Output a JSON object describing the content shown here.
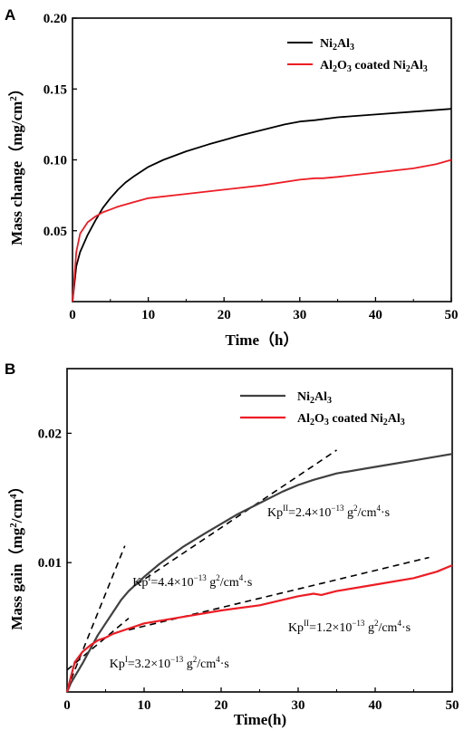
{
  "chart_data": [
    {
      "panel": "A",
      "type": "line",
      "xlabel": "Time（h）",
      "ylabel": "Mass change（mg/cm²）",
      "xlim": [
        0,
        50
      ],
      "ylim": [
        0,
        0.2
      ],
      "xticks": [
        "0",
        "10",
        "20",
        "30",
        "40",
        "50"
      ],
      "yticks": [
        "0.05",
        "0.10",
        "0.15",
        "0.20"
      ],
      "legend_position": "top-right",
      "series": [
        {
          "name": "Ni₂Al₃",
          "color": "#000000",
          "x": [
            0,
            0.5,
            1,
            2,
            3,
            4,
            5,
            6,
            7,
            8,
            10,
            12,
            15,
            18,
            20,
            22,
            25,
            28,
            30,
            32,
            35,
            40,
            45,
            50
          ],
          "y": [
            0,
            0.025,
            0.035,
            0.047,
            0.057,
            0.066,
            0.073,
            0.079,
            0.084,
            0.088,
            0.095,
            0.1,
            0.106,
            0.111,
            0.114,
            0.117,
            0.121,
            0.125,
            0.127,
            0.128,
            0.13,
            0.132,
            0.134,
            0.136
          ]
        },
        {
          "name": "Al₂O₃ coated Ni₂Al₃",
          "color": "#ee1c24",
          "x": [
            0,
            0.5,
            1,
            2,
            3,
            4,
            5,
            6,
            8,
            10,
            15,
            20,
            25,
            30,
            32,
            33,
            35,
            40,
            45,
            48,
            50
          ],
          "y": [
            0,
            0.035,
            0.048,
            0.056,
            0.06,
            0.063,
            0.065,
            0.067,
            0.07,
            0.073,
            0.076,
            0.079,
            0.082,
            0.086,
            0.087,
            0.087,
            0.088,
            0.091,
            0.094,
            0.097,
            0.1
          ]
        }
      ]
    },
    {
      "panel": "B",
      "type": "line",
      "xlabel": "Time(h)",
      "ylabel": "Mass gain（mg²/cm⁴）",
      "xlim": [
        0,
        50
      ],
      "ylim": [
        0,
        0.025
      ],
      "xticks": [
        "0",
        "10",
        "20",
        "30",
        "40",
        "50"
      ],
      "yticks": [
        "0.01",
        "0.02"
      ],
      "legend_position": "top-right",
      "series": [
        {
          "name": "Ni₂Al₃",
          "color": "#404040",
          "x": [
            0,
            0.5,
            1,
            2,
            3,
            4,
            5,
            6,
            7,
            8,
            10,
            12,
            15,
            18,
            20,
            22,
            25,
            28,
            30,
            32,
            35,
            40,
            45,
            50
          ],
          "y": [
            0,
            0.0007,
            0.0012,
            0.0022,
            0.0033,
            0.0044,
            0.0053,
            0.0062,
            0.0071,
            0.0078,
            0.0089,
            0.0099,
            0.0112,
            0.0123,
            0.013,
            0.0137,
            0.0146,
            0.0155,
            0.016,
            0.0164,
            0.0169,
            0.0174,
            0.0179,
            0.0184
          ]
        },
        {
          "name": "Al₂O₃ coated Ni₂Al₃",
          "color": "#ee1c24",
          "x": [
            0,
            0.5,
            1,
            2,
            3,
            4,
            5,
            6,
            8,
            10,
            15,
            20,
            25,
            30,
            32,
            33,
            35,
            40,
            45,
            48,
            50
          ],
          "y": [
            0,
            0.0012,
            0.0023,
            0.0031,
            0.0036,
            0.004,
            0.0042,
            0.0045,
            0.0049,
            0.0053,
            0.0058,
            0.0063,
            0.0067,
            0.0074,
            0.0076,
            0.0075,
            0.0078,
            0.0083,
            0.0088,
            0.0093,
            0.0098
          ]
        }
      ],
      "fit_lines": [
        {
          "x": [
            0,
            7.5
          ],
          "y": [
            0.0002,
            0.0113
          ],
          "color": "#000000"
        },
        {
          "x": [
            9,
            35
          ],
          "y": [
            0.0083,
            0.0187
          ],
          "color": "#000000"
        },
        {
          "x": [
            0,
            8
          ],
          "y": [
            0.0017,
            0.0057
          ],
          "color": "#000000"
        },
        {
          "x": [
            8,
            47
          ],
          "y": [
            0.0048,
            0.0104
          ],
          "color": "#000000"
        }
      ],
      "annotations": [
        {
          "base": "Kp",
          "sup1": "I",
          "mid": "=4.4×10",
          "sup2": "−13",
          "tail1": " g",
          "sup3": "2",
          "tail2": "/cm",
          "sup4": "4",
          "tail3": "·s",
          "x": 8.5,
          "y": 0.0082
        },
        {
          "base": "Kp",
          "sup1": "II",
          "mid": "=2.4×10",
          "sup2": "−13",
          "tail1": " g",
          "sup3": "2",
          "tail2": "/cm",
          "sup4": "4",
          "tail3": "·s",
          "x": 26,
          "y": 0.0136
        },
        {
          "base": "Kp",
          "sup1": "II",
          "mid": "=1.2×10",
          "sup2": "−13",
          "tail1": " g",
          "sup3": "2",
          "tail2": "/cm",
          "sup4": "4",
          "tail3": "·s",
          "x": 28.7,
          "y": 0.0047
        },
        {
          "base": "Kp",
          "sup1": "I",
          "mid": "=3.2×10",
          "sup2": "−13",
          "tail1": " g",
          "sup3": "2",
          "tail2": "/cm",
          "sup4": "4",
          "tail3": "·s",
          "x": 5.5,
          "y": 0.0019
        }
      ]
    }
  ]
}
